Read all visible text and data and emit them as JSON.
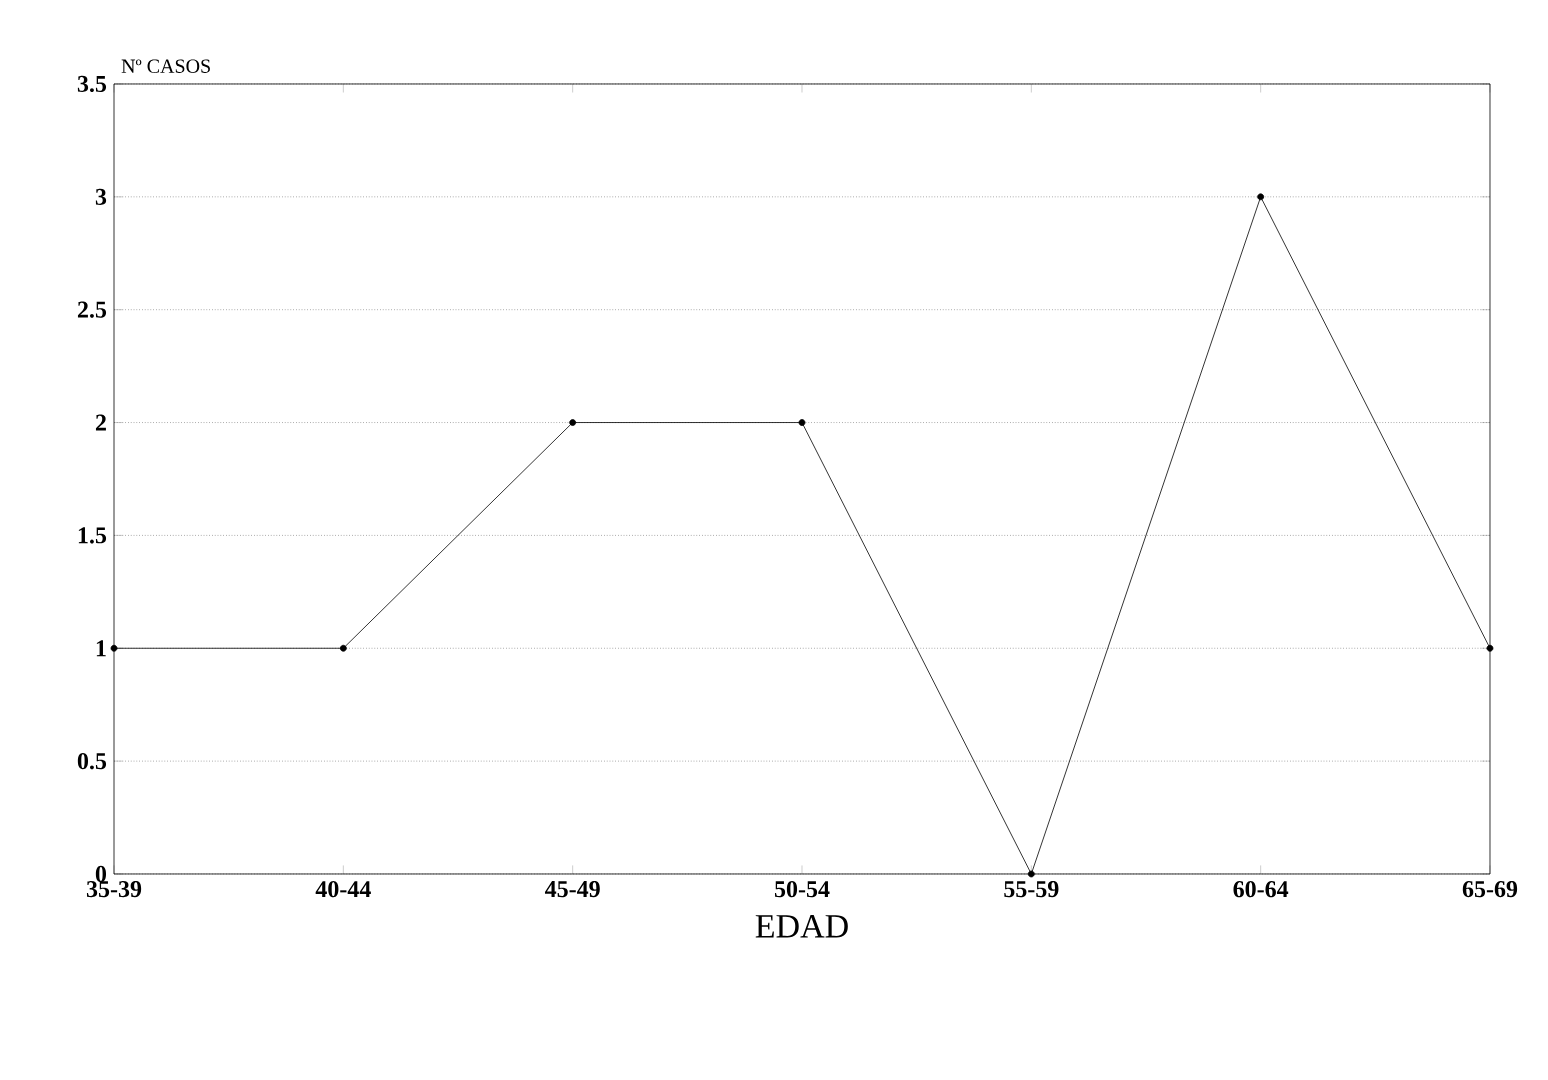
{
  "chart_data": {
    "type": "line",
    "ylabel": "Nº CASOS",
    "xlabel": "EDAD",
    "categories": [
      "35-39",
      "40-44",
      "45-49",
      "50-54",
      "55-59",
      "60-64",
      "65-69"
    ],
    "values": [
      1,
      1,
      2,
      2,
      0,
      3,
      1
    ],
    "color": "#000000",
    "ylim": [
      0,
      3.5
    ],
    "yticks": [
      0,
      0.5,
      1,
      1.5,
      2,
      2.5,
      3,
      3.5
    ],
    "grid": "y",
    "marker": "circle",
    "line_style": "solid"
  }
}
